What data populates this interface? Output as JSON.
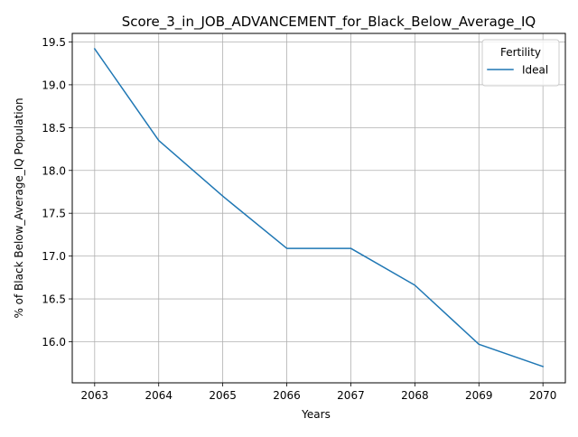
{
  "chart_data": {
    "type": "line",
    "title": "Score_3_in_JOB_ADVANCEMENT_for_Black_Below_Average_IQ",
    "xlabel": "Years",
    "ylabel": "% of Black Below_Average_IQ Population",
    "x": [
      2063,
      2064,
      2065,
      2066,
      2067,
      2068,
      2069,
      2070
    ],
    "xticks": [
      "2063",
      "2064",
      "2065",
      "2066",
      "2067",
      "2068",
      "2069",
      "2070"
    ],
    "yticks": [
      "16.0",
      "16.5",
      "17.0",
      "17.5",
      "18.0",
      "18.5",
      "19.0",
      "19.5"
    ],
    "xlim": [
      2062.65,
      2070.35
    ],
    "ylim": [
      15.52,
      19.6
    ],
    "grid": true,
    "legend": {
      "title": "Fertility",
      "placement": "top-right"
    },
    "series": [
      {
        "name": "Ideal",
        "color": "#1f77b4",
        "values": [
          19.42,
          18.35,
          17.7,
          17.09,
          17.09,
          16.66,
          15.97,
          15.71
        ]
      }
    ]
  }
}
